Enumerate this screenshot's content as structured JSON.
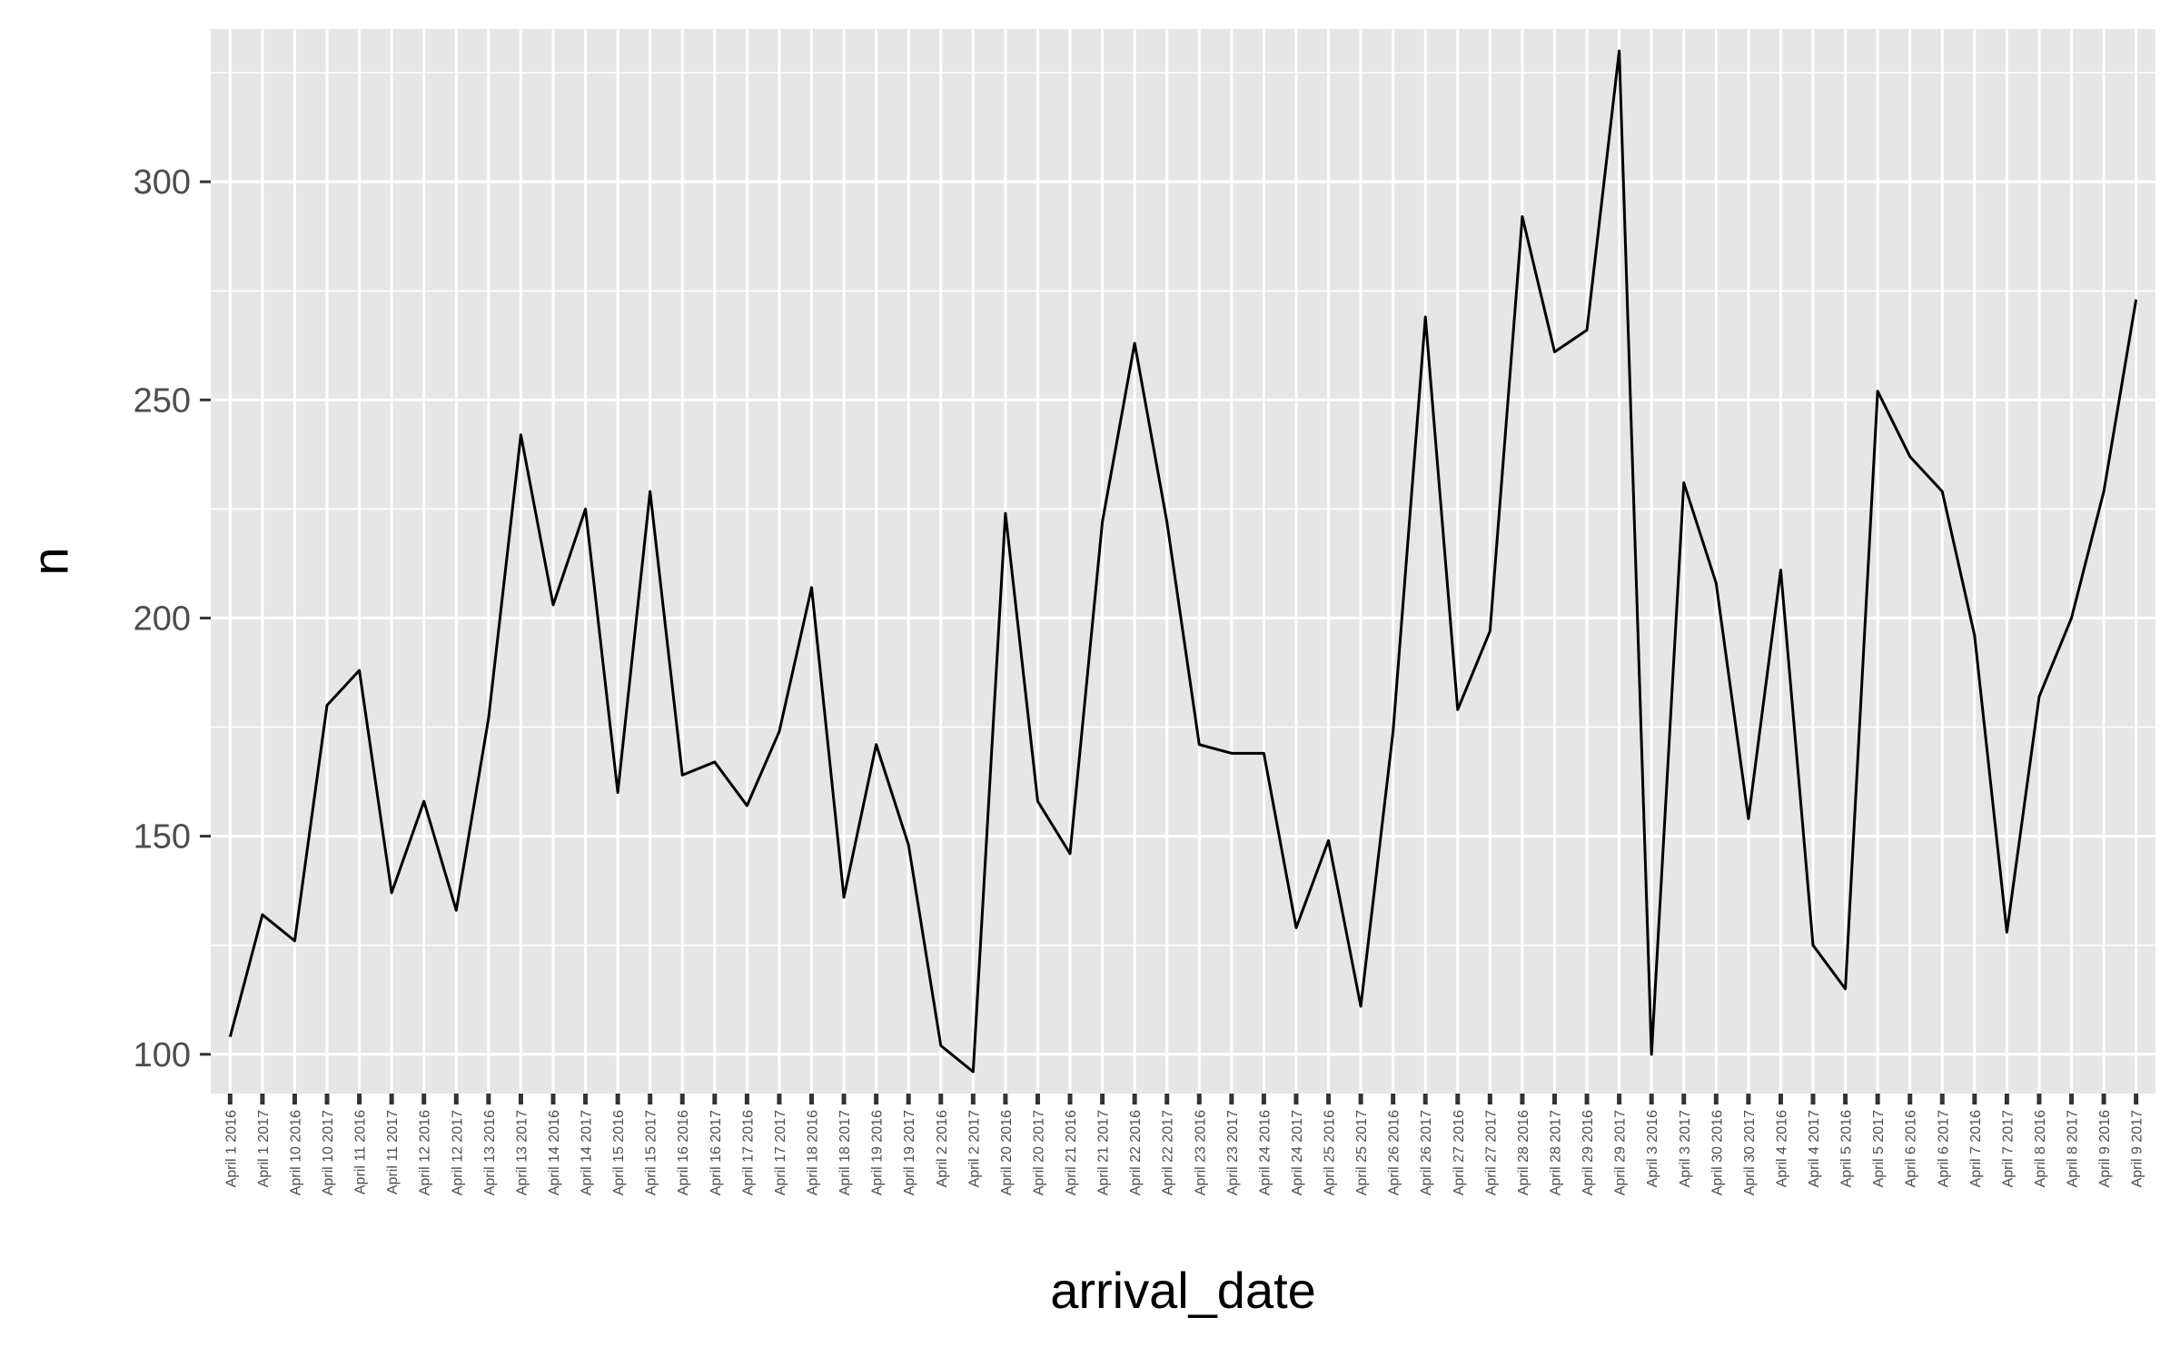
{
  "chart_data": {
    "type": "line",
    "title": "",
    "xlabel": "arrival_date",
    "ylabel": "n",
    "ylim": [
      91,
      335
    ],
    "y_ticks": [
      100,
      150,
      200,
      250,
      300
    ],
    "y_tick_labels": [
      "100",
      "150",
      "200",
      "250",
      "300"
    ],
    "grid": true,
    "legend": "none",
    "colors": {
      "panel": "#e6e6e6",
      "grid": "#ffffff",
      "line": "#000000",
      "tick": "#333333",
      "text": "#4d4d4d"
    },
    "categories": [
      "April 1 2016",
      "April 1 2017",
      "April 10 2016",
      "April 10 2017",
      "April 11 2016",
      "April 11 2017",
      "April 12 2016",
      "April 12 2017",
      "April 13 2016",
      "April 13 2017",
      "April 14 2016",
      "April 14 2017",
      "April 15 2016",
      "April 15 2017",
      "April 16 2016",
      "April 16 2017",
      "April 17 2016",
      "April 17 2017",
      "April 18 2016",
      "April 18 2017",
      "April 19 2016",
      "April 19 2017",
      "April 2 2016",
      "April 2 2017",
      "April 20 2016",
      "April 20 2017",
      "April 21 2016",
      "April 21 2017",
      "April 22 2016",
      "April 22 2017",
      "April 23 2016",
      "April 23 2017",
      "April 24 2016",
      "April 24 2017",
      "April 25 2016",
      "April 25 2017",
      "April 26 2016",
      "April 26 2017",
      "April 27 2016",
      "April 27 2017",
      "April 28 2016",
      "April 28 2017",
      "April 29 2016",
      "April 29 2017",
      "April 3 2016",
      "April 3 2017",
      "April 30 2016",
      "April 30 2017",
      "April 4 2016",
      "April 4 2017",
      "April 5 2016",
      "April 5 2017",
      "April 6 2016",
      "April 6 2017",
      "April 7 2016",
      "April 7 2017",
      "April 8 2016",
      "April 8 2017",
      "April 9 2016",
      "April 9 2017"
    ],
    "series": [
      {
        "values": [
          104,
          132,
          126,
          180,
          188,
          137,
          158,
          133,
          177,
          242,
          203,
          225,
          160,
          229,
          164,
          167,
          157,
          174,
          207,
          136,
          171,
          148,
          102,
          96,
          224,
          158,
          146,
          222,
          263,
          222,
          171,
          169,
          169,
          129,
          149,
          111,
          174,
          269,
          179,
          197,
          292,
          261,
          266,
          330,
          100,
          231,
          208,
          154,
          211,
          125,
          115,
          252,
          237,
          229,
          196,
          128,
          182,
          200,
          229,
          273
        ]
      }
    ]
  }
}
